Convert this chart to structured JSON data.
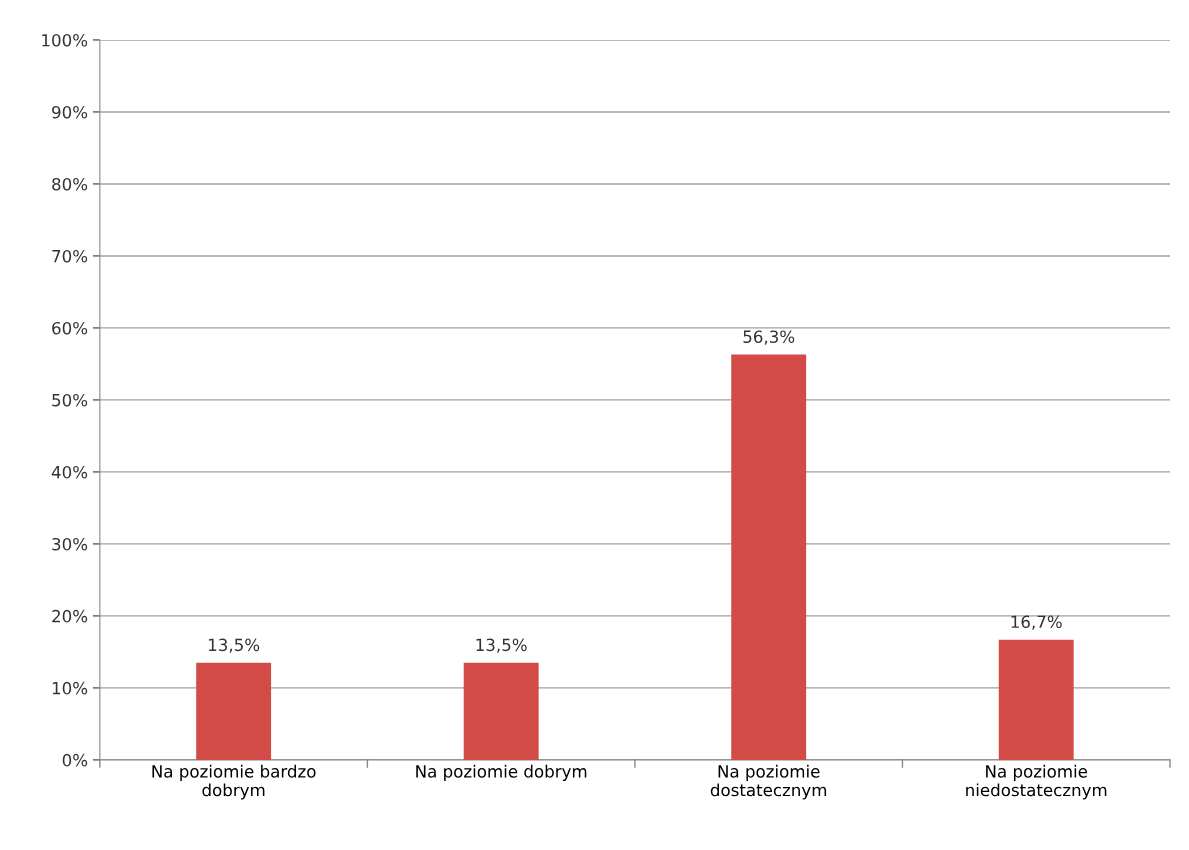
{
  "chart_data": {
    "type": "bar",
    "categories": [
      "Na poziomie bardzo\ndobrym",
      "Na poziomie dobrym",
      "Na poziomie\ndostatecznym",
      "Na poziomie\nniedostatecznym"
    ],
    "values": [
      13.5,
      13.5,
      56.3,
      16.7
    ],
    "value_labels": [
      "13,5%",
      "13,5%",
      "56,3%",
      "16,7%"
    ],
    "color": "#d24b47",
    "ylim": [
      0,
      100
    ],
    "yticks": [
      {
        "value": 0,
        "label": "0%"
      },
      {
        "value": 10,
        "label": "10%"
      },
      {
        "value": 20,
        "label": "20%"
      },
      {
        "value": 30,
        "label": "30%"
      },
      {
        "value": 40,
        "label": "40%"
      },
      {
        "value": 50,
        "label": "50%"
      },
      {
        "value": 60,
        "label": "60%"
      },
      {
        "value": 70,
        "label": "70%"
      },
      {
        "value": 80,
        "label": "80%"
      },
      {
        "value": 90,
        "label": "90%"
      },
      {
        "value": 100,
        "label": "100%"
      }
    ],
    "grid": "y"
  }
}
